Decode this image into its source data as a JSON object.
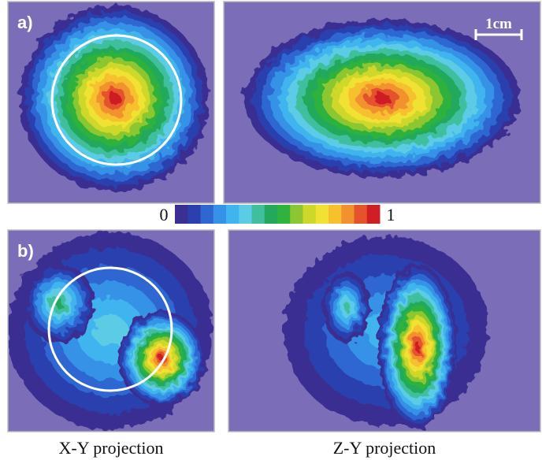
{
  "panel_a": {
    "label": "a)"
  },
  "panel_b": {
    "label": "b)"
  },
  "scale_bar": "1cm",
  "colorbar": {
    "min": 0,
    "max": 1,
    "colors": [
      "#7b6db8",
      "#3b2f92",
      "#2c3fae",
      "#2f66d2",
      "#3592e6",
      "#3fb4ee",
      "#5ccbe6",
      "#3fbf9e",
      "#22a95c",
      "#2fb23e",
      "#8cc733",
      "#cdd82b",
      "#f0e132",
      "#f7c02f",
      "#f1922e",
      "#e5532d",
      "#cf1f24"
    ]
  },
  "captions": [
    "X-Y projection",
    "Z-Y projection"
  ]
}
